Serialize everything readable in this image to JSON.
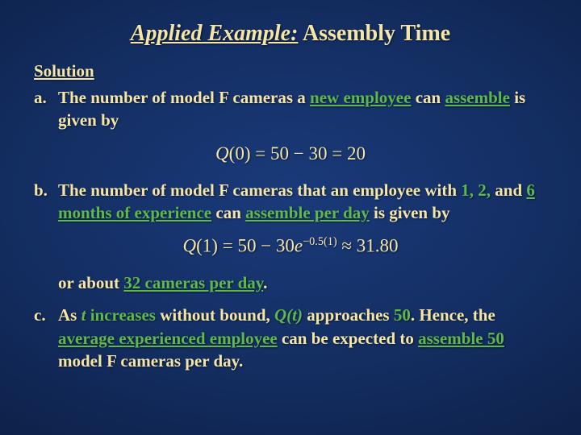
{
  "colors": {
    "text": "#f5e6a8",
    "accent": "#5fb84a",
    "bg_center": "#1a3a7a",
    "bg_edge": "#040a1c"
  },
  "typography": {
    "title_fontsize": 28,
    "body_fontsize": 21,
    "equation_fontsize": 23,
    "font_family": "Georgia, Times New Roman, serif"
  },
  "title": {
    "applied_example": "Applied Example:",
    "rest": " Assembly Time"
  },
  "solution_label": "Solution",
  "items": {
    "a": {
      "label": "a.",
      "pre": "The number of model F cameras a ",
      "accent": "new employee",
      "post1": " can ",
      "accent2": "assemble",
      "post2": " is given by"
    },
    "b": {
      "label": "b.",
      "pre": "The number of model F cameras that an employee with ",
      "nums": "1, 2,",
      "mid1": " and ",
      "months": "6 months of experience",
      "mid2": " can ",
      "assemble": "assemble per day",
      "post": " is given by",
      "footer_pre": "or about ",
      "footer_num": "32 cameras per day",
      "footer_post": "."
    },
    "c": {
      "label": "c.",
      "pre": "As ",
      "t": "t",
      "inc": " increases",
      "mid1": " without bound, ",
      "qt": "Q(t)",
      "mid2": " approaches ",
      "fifty": "50",
      "dot": ". Hence, the ",
      "avg": "average experienced employee",
      "mid3": " can be expected to ",
      "asm50": "assemble 50",
      "tail": " model F cameras per day."
    }
  },
  "equations": {
    "eq1": {
      "lhs_fn": "Q",
      "lhs_arg": "(0)",
      "eq": " = ",
      "rhs1": "50 − 30",
      "eq2": " = ",
      "result": "20"
    },
    "eq2": {
      "lhs_fn": "Q",
      "lhs_arg": "(1)",
      "eq": " = ",
      "rhs_a": "50 − 30",
      "e": "e",
      "exp": "−0.5(1)",
      "approx": " ≈ ",
      "result": "31.80"
    }
  }
}
